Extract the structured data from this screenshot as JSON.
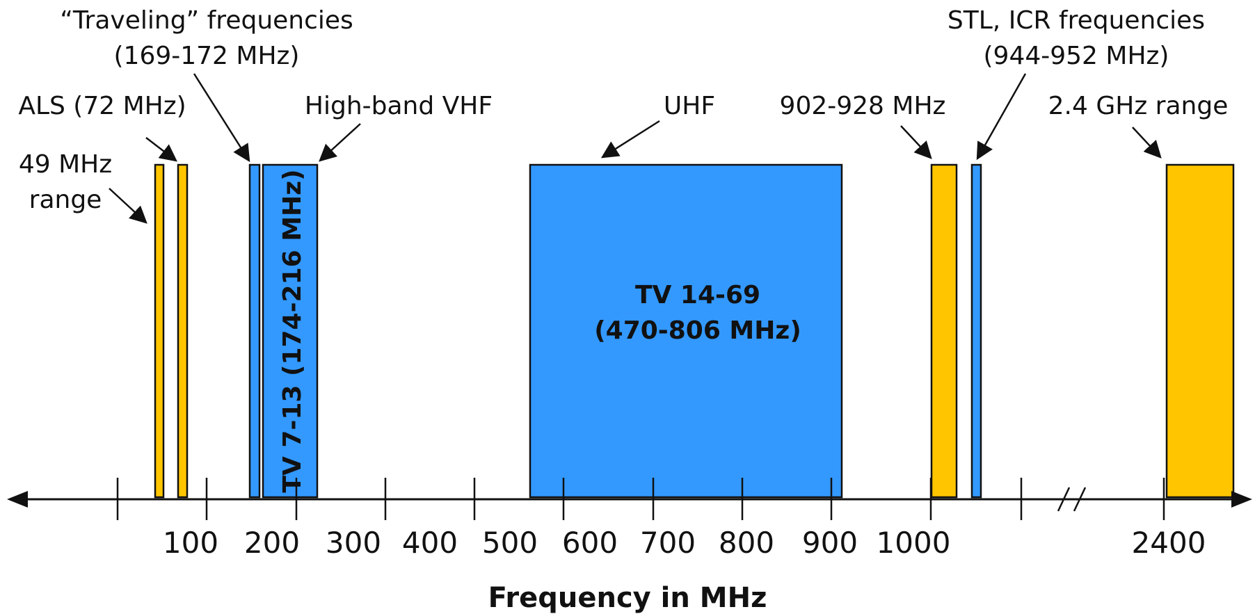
{
  "colors": {
    "amateur_band": "#FFC600",
    "tv_band": "#3399FF",
    "outline": "#111111"
  },
  "axis": {
    "label": "Frequency in MHz",
    "tick_labels": [
      "100",
      "200",
      "300",
      "400",
      "500",
      "600",
      "700",
      "800",
      "900",
      "1000",
      "2400"
    ],
    "break_marker": "//"
  },
  "annotations": {
    "traveling_line1": "“Traveling” frequencies",
    "traveling_line2": "(169-172 MHz)",
    "stl_line1": "STL, ICR frequencies",
    "stl_line2": "(944-952 MHz)",
    "als": "ALS (72 MHz)",
    "high_band_vhf": "High-band VHF",
    "uhf": "UHF",
    "band_902_928": "902-928 MHz",
    "ghz_24": "2.4 GHz range",
    "mhz49_line1": "49 MHz",
    "mhz49_line2": "range"
  },
  "bands": {
    "tv_7_13": "TV 7-13 (174-216 MHz)",
    "tv_14_69_line1": "TV 14-69",
    "tv_14_69_line2": "(470-806 MHz)"
  }
}
